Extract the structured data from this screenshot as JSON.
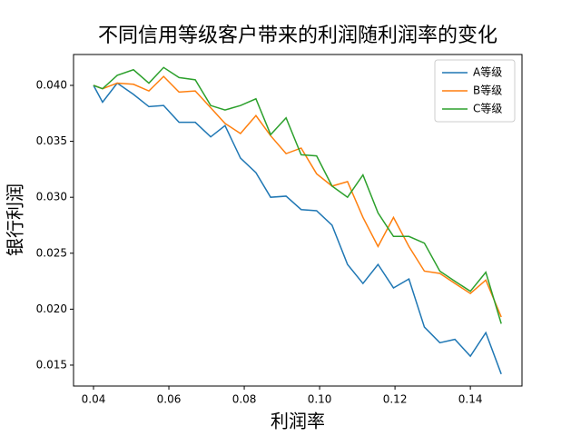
{
  "chart_data": {
    "type": "line",
    "title": "不同信用等级客户带来的利润随利润率的变化",
    "x_label": "利润率",
    "y_label": "银行利润",
    "x": [
      0.04,
      0.0424,
      0.0463,
      0.0506,
      0.0547,
      0.0586,
      0.0627,
      0.067,
      0.0711,
      0.0749,
      0.079,
      0.0831,
      0.087,
      0.0911,
      0.0951,
      0.0992,
      0.1033,
      0.1074,
      0.1115,
      0.1155,
      0.1196,
      0.1237,
      0.1278,
      0.1319,
      0.1359,
      0.14,
      0.1441,
      0.1482
    ],
    "series": [
      {
        "name": "A等级",
        "color": "#1f77b4",
        "values": [
          0.04,
          0.0385,
          0.0402,
          0.0392,
          0.0381,
          0.0382,
          0.0367,
          0.0367,
          0.0354,
          0.0364,
          0.0335,
          0.0322,
          0.03,
          0.0301,
          0.0289,
          0.0288,
          0.0275,
          0.024,
          0.0223,
          0.024,
          0.0219,
          0.0227,
          0.0184,
          0.017,
          0.0173,
          0.0158,
          0.0179,
          0.0142
        ]
      },
      {
        "name": "B等级",
        "color": "#ff7f0e",
        "values": [
          0.04,
          0.0397,
          0.0402,
          0.0401,
          0.0395,
          0.0408,
          0.0394,
          0.0395,
          0.038,
          0.0366,
          0.0357,
          0.0373,
          0.0355,
          0.0339,
          0.0344,
          0.0321,
          0.031,
          0.0314,
          0.0282,
          0.0256,
          0.0282,
          0.0256,
          0.0234,
          0.0232,
          0.0223,
          0.0214,
          0.0226,
          0.0193
        ]
      },
      {
        "name": "C等级",
        "color": "#2ca02c",
        "values": [
          0.04,
          0.0397,
          0.0409,
          0.0414,
          0.0402,
          0.0416,
          0.0407,
          0.0405,
          0.0382,
          0.0378,
          0.0382,
          0.0388,
          0.0356,
          0.0371,
          0.0338,
          0.0337,
          0.031,
          0.03,
          0.032,
          0.0286,
          0.0265,
          0.0265,
          0.0259,
          0.0234,
          0.0225,
          0.0216,
          0.0233,
          0.0187
        ]
      }
    ],
    "xlim": [
      0.0347,
      0.1537
    ],
    "ylim": [
      0.01313,
      0.04276
    ],
    "xticks": [
      {
        "value": 0.04,
        "label": "0.04"
      },
      {
        "value": 0.06,
        "label": "0.06"
      },
      {
        "value": 0.08,
        "label": "0.08"
      },
      {
        "value": 0.1,
        "label": "0.10"
      },
      {
        "value": 0.12,
        "label": "0.12"
      },
      {
        "value": 0.14,
        "label": "0.14"
      }
    ],
    "yticks": [
      {
        "value": 0.015,
        "label": "0.015"
      },
      {
        "value": 0.02,
        "label": "0.020"
      },
      {
        "value": 0.025,
        "label": "0.025"
      },
      {
        "value": 0.03,
        "label": "0.030"
      },
      {
        "value": 0.035,
        "label": "0.035"
      },
      {
        "value": 0.04,
        "label": "0.040"
      }
    ],
    "legend": "upper right",
    "grid": false
  }
}
